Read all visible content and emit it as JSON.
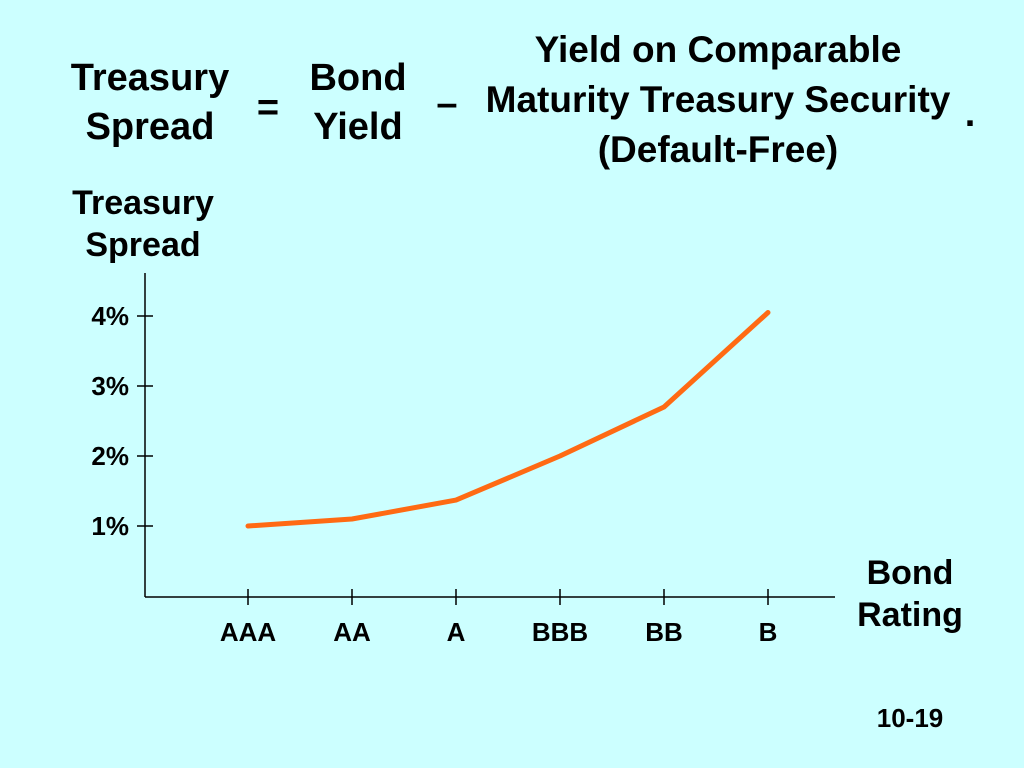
{
  "formula": {
    "lhs": "Treasury Spread",
    "equals": "=",
    "bond_yield": "Bond Yield",
    "minus": "–",
    "treasury_yield": "Yield on Comparable Maturity Treasury Security (Default-Free)",
    "period": "."
  },
  "chart_data": {
    "type": "line",
    "y_label": "Treasury Spread",
    "x_label": "Bond Rating",
    "categories": [
      "AAA",
      "AA",
      "A",
      "BBB",
      "BB",
      "B"
    ],
    "series": [
      {
        "color": "#ff6a13",
        "values": [
          1.0,
          1.1,
          1.37,
          2.0,
          2.7,
          4.05
        ]
      }
    ],
    "ylim": [
      0,
      4.6
    ],
    "yticks": [
      {
        "value": 1,
        "label": "1%"
      },
      {
        "value": 2,
        "label": "2%"
      },
      {
        "value": 3,
        "label": "3%"
      },
      {
        "value": 4,
        "label": "4%"
      }
    ]
  },
  "page_number": "10-19"
}
